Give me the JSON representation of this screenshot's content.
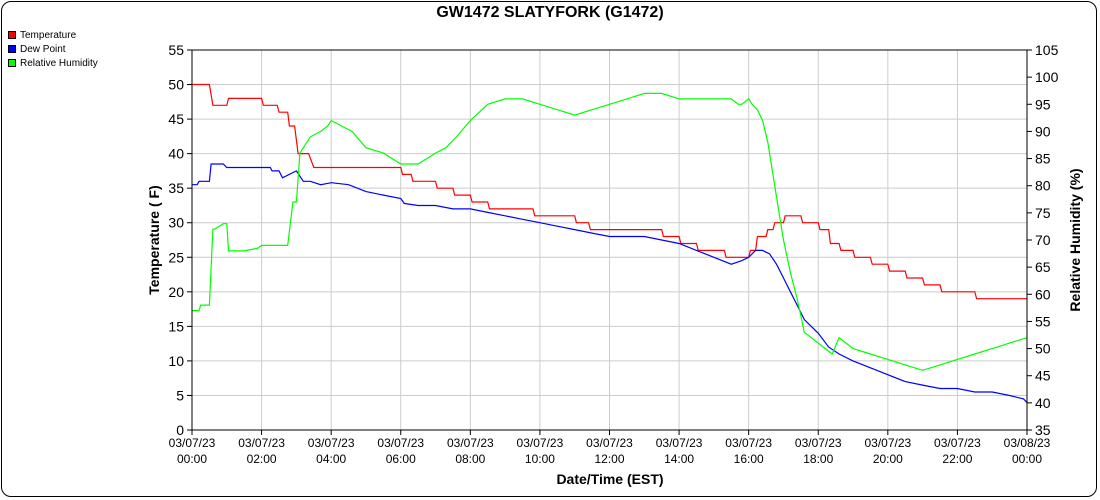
{
  "chart_data": {
    "type": "line",
    "title": "GW1472 SLATYFORK (G1472)",
    "xlabel": "Date/Time (EST)",
    "ylabel": "Temperature ( F)",
    "y2label": "Relative Humidity (%)",
    "xlim": [
      0,
      24
    ],
    "ylim": [
      0,
      55
    ],
    "y2lim": [
      35,
      105
    ],
    "grid": true,
    "legend_position": "top-left",
    "x_ticks": [
      {
        "date": "03/07/23",
        "time": "00:00"
      },
      {
        "date": "03/07/23",
        "time": "02:00"
      },
      {
        "date": "03/07/23",
        "time": "04:00"
      },
      {
        "date": "03/07/23",
        "time": "06:00"
      },
      {
        "date": "03/07/23",
        "time": "08:00"
      },
      {
        "date": "03/07/23",
        "time": "10:00"
      },
      {
        "date": "03/07/23",
        "time": "12:00"
      },
      {
        "date": "03/07/23",
        "time": "14:00"
      },
      {
        "date": "03/07/23",
        "time": "16:00"
      },
      {
        "date": "03/07/23",
        "time": "18:00"
      },
      {
        "date": "03/07/23",
        "time": "20:00"
      },
      {
        "date": "03/07/23",
        "time": "22:00"
      },
      {
        "date": "03/08/23",
        "time": "00:00"
      }
    ],
    "y_ticks": [
      0,
      5,
      10,
      15,
      20,
      25,
      30,
      35,
      40,
      45,
      50,
      55
    ],
    "y2_ticks": [
      35,
      40,
      45,
      50,
      55,
      60,
      65,
      70,
      75,
      80,
      85,
      90,
      95,
      100,
      105
    ],
    "series": [
      {
        "name": "Temperature",
        "color": "#ff0000",
        "axis": "left",
        "x": [
          0,
          0.5,
          0.6,
          1.0,
          1.05,
          2.0,
          2.05,
          2.45,
          2.5,
          2.75,
          2.8,
          2.95,
          3.05,
          3.35,
          3.5,
          4.0,
          6.0,
          6.05,
          6.3,
          6.35,
          7.0,
          7.05,
          7.5,
          7.55,
          8.0,
          8.05,
          8.5,
          8.55,
          9.8,
          9.85,
          11.0,
          11.05,
          11.4,
          11.45,
          13.5,
          13.55,
          14.0,
          14.05,
          14.5,
          14.55,
          15.3,
          15.35,
          16.0,
          16.05,
          16.2,
          16.25,
          16.5,
          16.55,
          16.7,
          16.75,
          17.0,
          17.05,
          17.5,
          17.55,
          18.0,
          18.05,
          18.3,
          18.35,
          18.6,
          18.65,
          19.0,
          19.05,
          19.5,
          19.55,
          20.0,
          20.05,
          20.5,
          20.55,
          21.0,
          21.05,
          21.5,
          21.55,
          22.0,
          22.05,
          22.5,
          22.55,
          23.0,
          23.05,
          23.5,
          23.55,
          23.85,
          23.9,
          24.0
        ],
        "values": [
          50,
          50,
          47,
          47,
          48,
          48,
          47,
          47,
          46,
          46,
          44,
          44,
          40,
          40,
          38,
          38,
          38,
          37,
          37,
          36,
          36,
          35,
          35,
          34,
          34,
          33,
          33,
          32,
          32,
          31,
          31,
          30,
          30,
          29,
          29,
          28,
          28,
          27,
          27,
          26,
          26,
          25,
          25,
          26,
          26,
          28,
          28,
          29,
          29,
          30,
          30,
          31,
          31,
          30,
          30,
          29,
          29,
          27,
          27,
          26,
          26,
          25,
          25,
          24,
          24,
          23,
          23,
          22,
          22,
          21,
          21,
          20,
          20,
          20,
          20,
          19,
          19,
          19,
          19,
          19,
          19,
          19,
          19
        ]
      },
      {
        "name": "Dew Point",
        "color": "#0000ff",
        "axis": "left",
        "x": [
          0,
          0.15,
          0.2,
          0.5,
          0.55,
          0.9,
          1.0,
          1.5,
          2.0,
          2.25,
          2.3,
          2.5,
          2.6,
          3.0,
          3.2,
          3.4,
          3.7,
          4.0,
          4.5,
          5.0,
          5.5,
          6.0,
          6.1,
          6.5,
          7.0,
          7.5,
          8.0,
          8.5,
          9.0,
          9.5,
          10.0,
          10.5,
          11.0,
          11.5,
          12.0,
          12.5,
          13.0,
          13.5,
          14.0,
          14.5,
          15.0,
          15.5,
          15.8,
          16.0,
          16.2,
          16.4,
          16.6,
          16.8,
          17.0,
          17.2,
          17.4,
          17.6,
          17.8,
          18.0,
          18.3,
          18.6,
          19.0,
          19.5,
          20.0,
          20.5,
          21.0,
          21.5,
          22.0,
          22.5,
          23.0,
          23.5,
          23.9,
          24.0
        ],
        "values": [
          35.5,
          35.5,
          36,
          36,
          38.5,
          38.5,
          38,
          38,
          38,
          38,
          37.5,
          37.5,
          36.5,
          37.5,
          36,
          36,
          35.5,
          35.8,
          35.5,
          34.5,
          34,
          33.5,
          32.8,
          32.5,
          32.5,
          32,
          32,
          31.5,
          31,
          30.5,
          30,
          29.5,
          29,
          28.5,
          28,
          28,
          28,
          27.5,
          27,
          26,
          25,
          24,
          24.5,
          25,
          26,
          26,
          25.5,
          24,
          22,
          20,
          18,
          16,
          15,
          14,
          12,
          11,
          10,
          9,
          8,
          7,
          6.5,
          6,
          6,
          5.5,
          5.5,
          5,
          4.5,
          4
        ]
      },
      {
        "name": "Relative Humidity",
        "color": "#00ff00",
        "axis": "right",
        "x": [
          0,
          0.2,
          0.25,
          0.5,
          0.6,
          0.65,
          0.9,
          1.0,
          1.05,
          1.5,
          1.9,
          2.0,
          2.05,
          2.5,
          2.7,
          2.75,
          2.9,
          3.0,
          3.1,
          3.4,
          3.7,
          3.9,
          4.0,
          4.3,
          4.6,
          5.0,
          5.5,
          6.0,
          6.5,
          7.0,
          7.3,
          7.6,
          8.0,
          8.5,
          9.0,
          9.5,
          10.0,
          10.5,
          11.0,
          11.5,
          12.0,
          12.5,
          13.0,
          13.5,
          14.0,
          14.5,
          15.0,
          15.3,
          15.5,
          15.7,
          15.8,
          16.0,
          16.1,
          16.25,
          16.4,
          16.55,
          16.7,
          16.85,
          17.0,
          17.2,
          17.4,
          17.6,
          17.8,
          18.0,
          18.2,
          18.4,
          18.6,
          18.8,
          19.0,
          19.5,
          20.0,
          20.5,
          21.0,
          21.5,
          22.0,
          22.5,
          23.0,
          23.5,
          24.0
        ],
        "values": [
          57,
          57,
          58,
          58,
          72,
          72,
          73,
          73,
          68,
          68,
          68.5,
          69,
          69,
          69,
          69,
          69,
          77,
          77,
          86,
          89,
          90,
          91,
          92,
          91,
          90,
          87,
          86,
          84,
          84,
          86,
          87,
          89,
          92,
          95,
          96,
          96,
          95,
          94,
          93,
          94,
          95,
          96,
          97,
          97,
          96,
          96,
          96,
          96,
          96,
          95,
          95,
          96,
          95,
          94,
          92,
          88,
          82,
          76,
          70,
          64,
          59,
          53,
          52,
          51,
          50,
          49,
          52,
          51,
          50,
          49,
          48,
          47,
          46,
          47,
          48,
          49,
          50,
          51,
          52
        ]
      }
    ]
  }
}
